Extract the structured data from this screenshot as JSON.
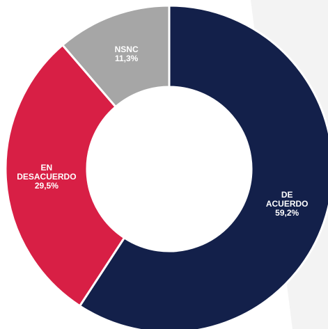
{
  "chart_data": {
    "type": "donut",
    "categories": [
      "DE ACUERDO",
      "EN DESACUERDO",
      "NSNC"
    ],
    "values": [
      59.2,
      29.5,
      11.3
    ],
    "value_labels": [
      "59,2%",
      "29,5%",
      "11,3%"
    ],
    "colors": [
      "#13204a",
      "#d81f45",
      "#a6a6a6"
    ]
  }
}
